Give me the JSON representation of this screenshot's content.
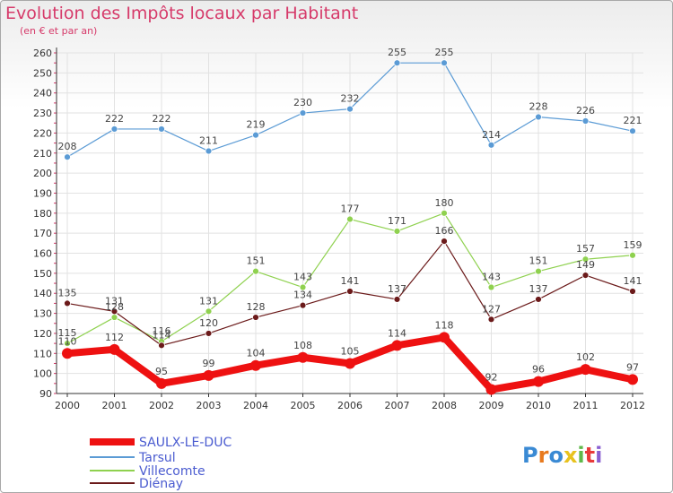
{
  "chart_data": {
    "type": "line",
    "title": "Evolution des Impôts locaux par Habitant",
    "subtitle": "(en € et par an)",
    "xlabel": "",
    "ylabel": "",
    "ylim": [
      90,
      260
    ],
    "yticks": [
      90,
      100,
      110,
      120,
      130,
      140,
      150,
      160,
      170,
      180,
      190,
      200,
      210,
      220,
      230,
      240,
      250,
      260
    ],
    "x": [
      "2000",
      "2001",
      "2002",
      "2003",
      "2004",
      "2005",
      "2006",
      "2007",
      "2008",
      "2009",
      "2010",
      "2011",
      "2012"
    ],
    "series": [
      {
        "name": "Tarsul",
        "color": "#5b9bd5",
        "values": [
          208,
          222,
          222,
          211,
          219,
          230,
          232,
          255,
          255,
          214,
          228,
          226,
          221
        ]
      },
      {
        "name": "Villecomte",
        "color": "#8fd14f",
        "values": [
          115,
          128,
          116,
          131,
          151,
          143,
          177,
          171,
          180,
          143,
          151,
          157,
          159
        ]
      },
      {
        "name": "Diénay",
        "color": "#6b1a1a",
        "values": [
          135,
          131,
          114,
          120,
          128,
          134,
          141,
          137,
          166,
          127,
          137,
          149,
          141
        ]
      },
      {
        "name": "SAULX-LE-DUC",
        "color": "#ee1111",
        "values": [
          110,
          112,
          95,
          99,
          104,
          108,
          105,
          114,
          118,
          92,
          96,
          102,
          97
        ]
      }
    ],
    "legend": [
      "SAULX-LE-DUC",
      "Tarsul",
      "Villecomte",
      "Diénay"
    ],
    "grid": true,
    "logo": "Proxiti"
  }
}
